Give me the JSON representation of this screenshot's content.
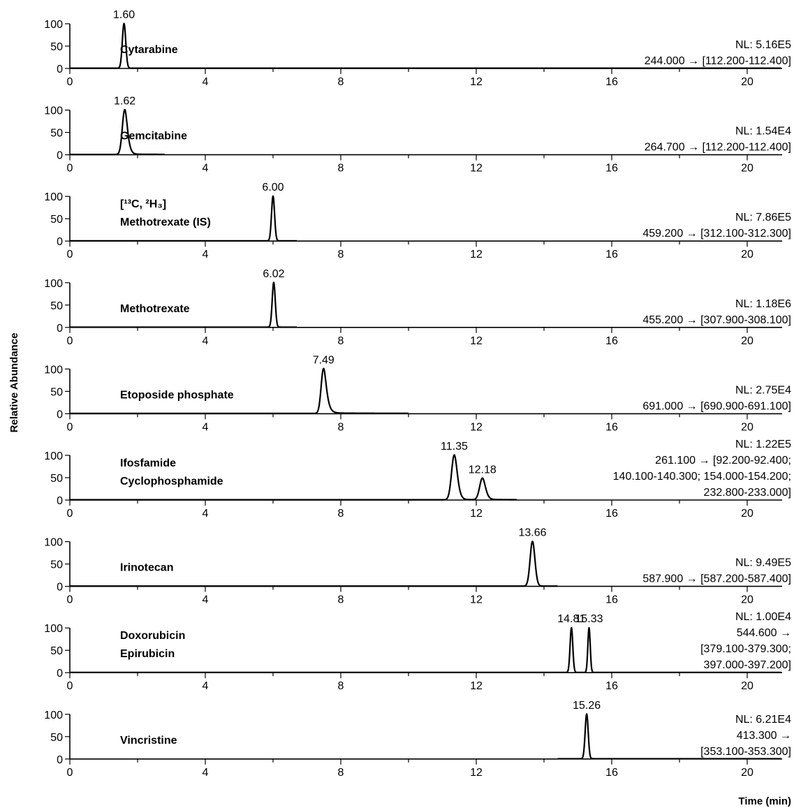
{
  "chart_data": {
    "type": "line",
    "ylabel": "Relative Abundance",
    "xlabel": "Time (min)",
    "xlim": [
      0,
      21
    ],
    "ylim": [
      0,
      100
    ],
    "xticks": [
      0,
      4,
      8,
      12,
      16,
      20
    ],
    "yticks": [
      0,
      50,
      100
    ],
    "xtick_labels": [
      "0",
      "4",
      "8",
      "12",
      "16",
      "20"
    ],
    "ytick_labels": [
      "0",
      "50",
      "100"
    ],
    "panels": [
      {
        "compound_lines": [
          "Cytarabine"
        ],
        "peaks": [
          {
            "rt": 1.6,
            "label": "1.60",
            "height": 100,
            "width": 0.05,
            "tail": 0.0
          }
        ],
        "trace_range": [
          0,
          21
        ],
        "nl": "NL: 5.16E5",
        "transition_lines": [
          "244.000 → [112.200-112.400]"
        ]
      },
      {
        "compound_lines": [
          "Gemcitabine"
        ],
        "peaks": [
          {
            "rt": 1.62,
            "label": "1.62",
            "height": 100,
            "width": 0.07,
            "tail": 0.25
          }
        ],
        "trace_range": [
          0,
          2.8
        ],
        "nl": "NL: 1.54E4",
        "transition_lines": [
          "264.700 → [112.200-112.400]"
        ]
      },
      {
        "compound_lines": [
          "[¹³C, ²H₃]",
          "Methotrexate (IS)"
        ],
        "peaks": [
          {
            "rt": 6.0,
            "label": "6.00",
            "height": 100,
            "width": 0.045,
            "tail": 0.0
          }
        ],
        "trace_range": [
          0,
          6.7
        ],
        "nl": "NL: 7.86E5",
        "transition_lines": [
          "459.200 → [312.100-312.300]"
        ]
      },
      {
        "compound_lines": [
          "Methotrexate"
        ],
        "peaks": [
          {
            "rt": 6.02,
            "label": "6.02",
            "height": 100,
            "width": 0.045,
            "tail": 0.0
          }
        ],
        "trace_range": [
          0,
          6.7
        ],
        "nl": "NL: 1.18E6",
        "transition_lines": [
          "455.200 → [307.900-308.100]"
        ]
      },
      {
        "compound_lines": [
          "Etoposide phosphate"
        ],
        "peaks": [
          {
            "rt": 7.49,
            "label": "7.49",
            "height": 100,
            "width": 0.07,
            "tail": 0.35
          }
        ],
        "trace_range": [
          0,
          10.0
        ],
        "nl": "NL: 2.75E4",
        "transition_lines": [
          "691.000 → [690.900-691.100]"
        ]
      },
      {
        "compound_lines": [
          "Ifosfamide",
          "Cyclophosphamide"
        ],
        "peaks": [
          {
            "rt": 11.35,
            "label": "11.35",
            "height": 100,
            "width": 0.08,
            "tail": 0.18
          },
          {
            "rt": 12.18,
            "label": "12.18",
            "height": 48,
            "width": 0.08,
            "tail": 0.18
          }
        ],
        "trace_range": [
          0,
          13.2
        ],
        "nl": "NL: 1.22E5",
        "transition_lines": [
          "261.100 →  [92.200-92.400;",
          "140.100-140.300; 154.000-154.200;",
          "232.800-233.000]"
        ]
      },
      {
        "compound_lines": [
          "Irinotecan"
        ],
        "peaks": [
          {
            "rt": 13.66,
            "label": "13.66",
            "height": 100,
            "width": 0.07,
            "tail": 0.05
          }
        ],
        "trace_range": [
          0,
          14.4
        ],
        "nl": "NL: 9.49E5",
        "transition_lines": [
          "587.900 → [587.200-587.400]"
        ]
      },
      {
        "compound_lines": [
          "Doxorubicin",
          "Epirubicin"
        ],
        "peaks": [
          {
            "rt": 14.81,
            "label": "14.81",
            "height": 100,
            "width": 0.04,
            "tail": 0.0
          },
          {
            "rt": 15.33,
            "label": "15.33",
            "height": 100,
            "width": 0.035,
            "tail": 0.0
          }
        ],
        "trace_range": [
          0,
          21
        ],
        "nl": "NL: 1.00E4",
        "transition_lines": [
          "544.600 →",
          "[379.100-379.300;",
          "397.000-397.200]"
        ]
      },
      {
        "compound_lines": [
          "Vincristine"
        ],
        "peaks": [
          {
            "rt": 15.26,
            "label": "15.26",
            "height": 100,
            "width": 0.045,
            "tail": 0.0
          }
        ],
        "trace_range": [
          14.4,
          21
        ],
        "nl": "NL: 6.21E4",
        "transition_lines": [
          "413.300 →",
          "[353.100-353.300]"
        ]
      }
    ]
  }
}
